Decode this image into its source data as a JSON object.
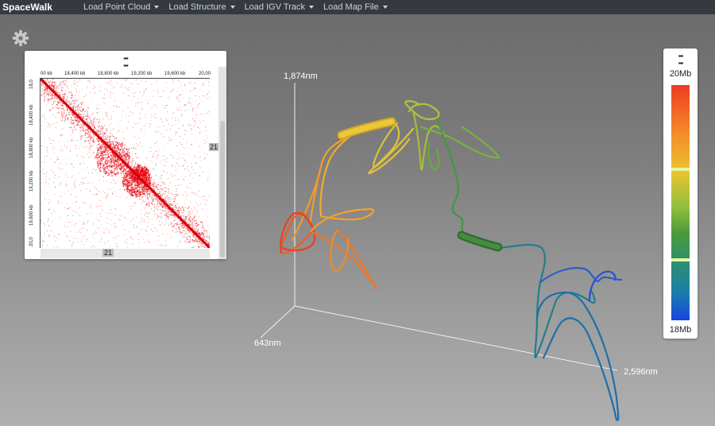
{
  "navbar": {
    "brand": "SpaceWalk",
    "menus": [
      "Load Point Cloud",
      "Load Structure",
      "Load IGV Track",
      "Load Map File"
    ]
  },
  "icons": {
    "settings": "gear-icon",
    "drag": "grip-icon"
  },
  "contact_map": {
    "top_ticks": [
      "00 kb",
      "18,400 kb",
      "18,800 kb",
      "19,200 kb",
      "19,600 kb",
      "20,00"
    ],
    "left_ticks": [
      "18,0",
      "18,400 kb",
      "18,800 kb",
      "19,200 kb",
      "19,600 kb",
      "20,0"
    ],
    "h_scroll_label": "21",
    "v_scroll_label": "21",
    "map_color": "#e8000b"
  },
  "legend": {
    "top": "20Mb",
    "bottom": "18Mb"
  },
  "axes": {
    "y_label": "1,874nm",
    "z_label": "643nm",
    "x_label": "2,596nm"
  },
  "colors": {
    "navbar": "#343a40",
    "background": "#7c7c7c"
  }
}
